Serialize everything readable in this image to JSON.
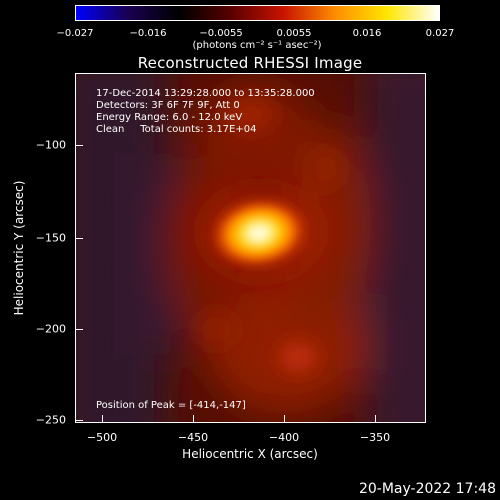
{
  "colorbar": {
    "tick_labels": [
      "−0.027",
      "−0.016",
      "−0.0055",
      "0.0055",
      "0.016",
      "0.027"
    ],
    "units": "(photons cm⁻² s⁻¹ asec⁻²)",
    "colormap_stops": [
      "#0000ff",
      "#1a0050",
      "#000000",
      "#5a0000",
      "#c81400",
      "#ff8c00",
      "#ffe600",
      "#ffffff"
    ]
  },
  "plot": {
    "title": "Reconstructed RHESSI Image",
    "info_lines": [
      "17-Dec-2014 13:29:28.000 to 13:35:28.000",
      "Detectors: 3F 6F 7F 9F, Att 0",
      "Energy Range: 6.0 - 12.0 keV",
      "Clean     Total counts: 3.17E+04"
    ],
    "peak_label": "Position of Peak = [-414,-147]",
    "xlabel": "Heliocentric X (arcsec)",
    "ylabel": "Heliocentric Y (arcsec)",
    "x_ticks": [
      "−500",
      "−450",
      "−400",
      "−350"
    ],
    "y_ticks": [
      "−100",
      "−150",
      "−200",
      "−250"
    ],
    "x_range": [
      -515,
      -320
    ],
    "y_range": [
      -255,
      -60
    ],
    "peak_position": [
      -414,
      -147
    ]
  },
  "footer": {
    "timestamp": "20-May-2022 17:48"
  }
}
